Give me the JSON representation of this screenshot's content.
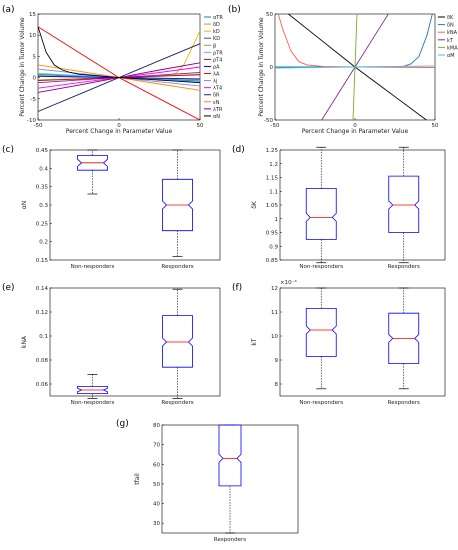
{
  "chart_data": [
    {
      "id": "a",
      "panel_label": "(a)",
      "type": "line",
      "xlabel": "Percent Change in Parameter Value",
      "ylabel": "Percent Change in Tumor Volume",
      "xlim": [
        -50,
        50
      ],
      "ylim": [
        -10,
        15
      ],
      "xticks": [
        "-50",
        "0",
        "50"
      ],
      "yticks": [
        "-10",
        "-5",
        "0",
        "5",
        "10",
        "15"
      ],
      "legend_position": "right",
      "series": [
        {
          "name": "αTR",
          "color": "#1f77b4",
          "x": [
            -50,
            -25,
            0,
            25,
            50
          ],
          "y": [
            0.8,
            0.4,
            0,
            -0.4,
            -0.8
          ]
        },
        {
          "name": "δD",
          "color": "#ff7f0e",
          "x": [
            -50,
            -25,
            0,
            25,
            50
          ],
          "y": [
            -0.6,
            -0.3,
            0,
            0.3,
            0.6
          ]
        },
        {
          "name": "kD",
          "color": "#e6b800",
          "x": [
            -50,
            -25,
            0,
            25,
            35,
            40,
            45,
            50
          ],
          "y": [
            -0.5,
            -0.25,
            0,
            0.3,
            1.0,
            3.0,
            7.0,
            11.0
          ]
        },
        {
          "name": "KD",
          "color": "#7e2f8e",
          "x": [
            -50,
            -25,
            0,
            25,
            50
          ],
          "y": [
            -1.2,
            -0.6,
            0,
            0.6,
            1.2
          ]
        },
        {
          "name": "β",
          "color": "#77ac30",
          "x": [
            -50,
            -25,
            0,
            25,
            50
          ],
          "y": [
            0.5,
            0.25,
            0,
            -0.25,
            -0.5
          ]
        },
        {
          "name": "ρTR",
          "color": "#4dbeee",
          "x": [
            -50,
            -25,
            0,
            25,
            50
          ],
          "y": [
            1.0,
            0.5,
            0,
            -0.5,
            -1.0
          ]
        },
        {
          "name": "ρT4",
          "color": "#a2142f",
          "x": [
            -50,
            -25,
            0,
            25,
            50
          ],
          "y": [
            -0.7,
            -0.35,
            0,
            0.35,
            0.7
          ]
        },
        {
          "name": "ρA",
          "color": "#0000ff",
          "x": [
            -50,
            -25,
            0,
            25,
            50
          ],
          "y": [
            0.3,
            0.15,
            0,
            -0.15,
            -0.3
          ]
        },
        {
          "name": "λA",
          "color": "#ff0000",
          "x": [
            -50,
            -25,
            0,
            25,
            50
          ],
          "y": [
            12.0,
            6.0,
            0,
            -5.0,
            -10.0
          ]
        },
        {
          "name": "λj",
          "color": "#8080ff",
          "x": [
            -50,
            -25,
            0,
            25,
            50
          ],
          "y": [
            2.0,
            1.0,
            0,
            -1.0,
            -2.0
          ]
        },
        {
          "name": "λT4",
          "color": "#ff00ff",
          "x": [
            -50,
            -25,
            0,
            25,
            50
          ],
          "y": [
            -2.5,
            -1.2,
            0,
            1.2,
            2.5
          ]
        },
        {
          "name": "δR",
          "color": "#202060",
          "x": [
            -50,
            -25,
            0,
            25,
            50
          ],
          "y": [
            -8.0,
            -4.0,
            0,
            4.0,
            8.0
          ]
        },
        {
          "name": "εN",
          "color": "#ff8c00",
          "x": [
            -50,
            -25,
            0,
            25,
            50
          ],
          "y": [
            3.0,
            1.5,
            0,
            -1.5,
            -3.0
          ]
        },
        {
          "name": "λTR",
          "color": "#800080",
          "x": [
            -50,
            -25,
            0,
            25,
            50
          ],
          "y": [
            -3.5,
            -1.8,
            0,
            1.8,
            3.5
          ]
        },
        {
          "name": "αN",
          "color": "#000000",
          "x": [
            -50,
            -45,
            -40,
            -35,
            -30,
            -25,
            0,
            25,
            50
          ],
          "y": [
            12.0,
            6.0,
            3.0,
            1.8,
            1.2,
            0.8,
            0,
            -0.6,
            -1.2
          ]
        }
      ]
    },
    {
      "id": "b",
      "panel_label": "(b)",
      "type": "line",
      "xlabel": "Percent Change in Parameter Value",
      "ylabel": "Percent Change in Tumor Volume",
      "xlim": [
        -50,
        50
      ],
      "ylim": [
        -50,
        50
      ],
      "xticks": [
        "-50",
        "0",
        "50"
      ],
      "yticks": [
        "-50",
        "0",
        "50"
      ],
      "legend_position": "right",
      "series": [
        {
          "name": "δK",
          "color": "#000000",
          "x": [
            -50,
            -25,
            0,
            25,
            50
          ],
          "y": [
            60,
            30,
            0,
            -28,
            -56
          ]
        },
        {
          "name": "δN",
          "color": "#1f77b4",
          "x": [
            -50,
            0,
            30,
            35,
            40,
            45,
            50
          ],
          "y": [
            0,
            0,
            0.5,
            3,
            10,
            30,
            60
          ]
        },
        {
          "name": "kNA",
          "color": "#ff6040",
          "x": [
            -50,
            -45,
            -40,
            -35,
            -30,
            -20,
            0,
            50
          ],
          "y": [
            60,
            35,
            15,
            5,
            2,
            0.5,
            0,
            -0.5
          ]
        },
        {
          "name": "kT",
          "color": "#7e2f8e",
          "x": [
            -50,
            -25,
            0,
            25,
            50
          ],
          "y": [
            -120,
            -60,
            0,
            60,
            120
          ]
        },
        {
          "name": "kMA",
          "color": "#77ac30",
          "x": [
            -3,
            0,
            3
          ],
          "y": [
            -120,
            0,
            120
          ]
        },
        {
          "name": "αM",
          "color": "#4dbeee",
          "x": [
            -50,
            -25,
            0,
            25,
            50
          ],
          "y": [
            -1,
            -0.5,
            0,
            0.5,
            1
          ]
        }
      ]
    },
    {
      "id": "c",
      "panel_label": "(c)",
      "type": "box",
      "ylabel": "αN",
      "categories": [
        "Non-responders",
        "Responders"
      ],
      "ylim": [
        0.15,
        0.45
      ],
      "yticks": [
        "0.15",
        "0.2",
        "0.25",
        "0.3",
        "0.35",
        "0.4",
        "0.45"
      ],
      "boxes": [
        {
          "whisker_low": 0.33,
          "q1": 0.395,
          "median": 0.415,
          "q3": 0.435,
          "whisker_high": 0.45
        },
        {
          "whisker_low": 0.16,
          "q1": 0.23,
          "median": 0.3,
          "q3": 0.37,
          "whisker_high": 0.45
        }
      ]
    },
    {
      "id": "d",
      "panel_label": "(d)",
      "type": "box",
      "ylabel": "δK",
      "categories": [
        "Non-responders",
        "Responders"
      ],
      "ylim": [
        0.85,
        1.25
      ],
      "yticks": [
        "0.85",
        "0.9",
        "0.95",
        "1",
        "1.05",
        "1.1",
        "1.15",
        "1.2",
        "1.25"
      ],
      "boxes": [
        {
          "whisker_low": 0.84,
          "q1": 0.925,
          "median": 1.005,
          "q3": 1.11,
          "whisker_high": 1.26
        },
        {
          "whisker_low": 0.84,
          "q1": 0.95,
          "median": 1.05,
          "q3": 1.155,
          "whisker_high": 1.26
        }
      ]
    },
    {
      "id": "e",
      "panel_label": "(e)",
      "type": "box",
      "ylabel": "kNA",
      "categories": [
        "Non-responders",
        "Responders"
      ],
      "ylim": [
        0.05,
        0.14
      ],
      "yticks": [
        "0.06",
        "0.08",
        "0.1",
        "0.12",
        "0.14"
      ],
      "boxes": [
        {
          "whisker_low": 0.048,
          "q1": 0.052,
          "median": 0.055,
          "q3": 0.058,
          "whisker_high": 0.068
        },
        {
          "whisker_low": 0.048,
          "q1": 0.074,
          "median": 0.095,
          "q3": 0.117,
          "whisker_high": 0.139
        }
      ]
    },
    {
      "id": "f",
      "panel_label": "(f)",
      "type": "box",
      "ylabel": "kT",
      "exponent_label": "×10⁻³",
      "categories": [
        "Non-responders",
        "Responders"
      ],
      "ylim": [
        7.5,
        12
      ],
      "yticks": [
        "8",
        "9",
        "10",
        "11",
        "12"
      ],
      "boxes": [
        {
          "whisker_low": 7.8,
          "q1": 9.15,
          "median": 10.25,
          "q3": 11.15,
          "whisker_high": 12.0
        },
        {
          "whisker_low": 7.8,
          "q1": 8.85,
          "median": 9.9,
          "q3": 10.95,
          "whisker_high": 12.0
        }
      ]
    },
    {
      "id": "g",
      "panel_label": "(g)",
      "type": "box",
      "ylabel": "tfail",
      "categories": [
        "Responders"
      ],
      "ylim": [
        25,
        80
      ],
      "yticks": [
        "30",
        "40",
        "50",
        "60",
        "70",
        "80"
      ],
      "boxes": [
        {
          "whisker_low": 25,
          "q1": 49,
          "median": 63,
          "q3": 80,
          "whisker_high": 80
        }
      ]
    }
  ]
}
